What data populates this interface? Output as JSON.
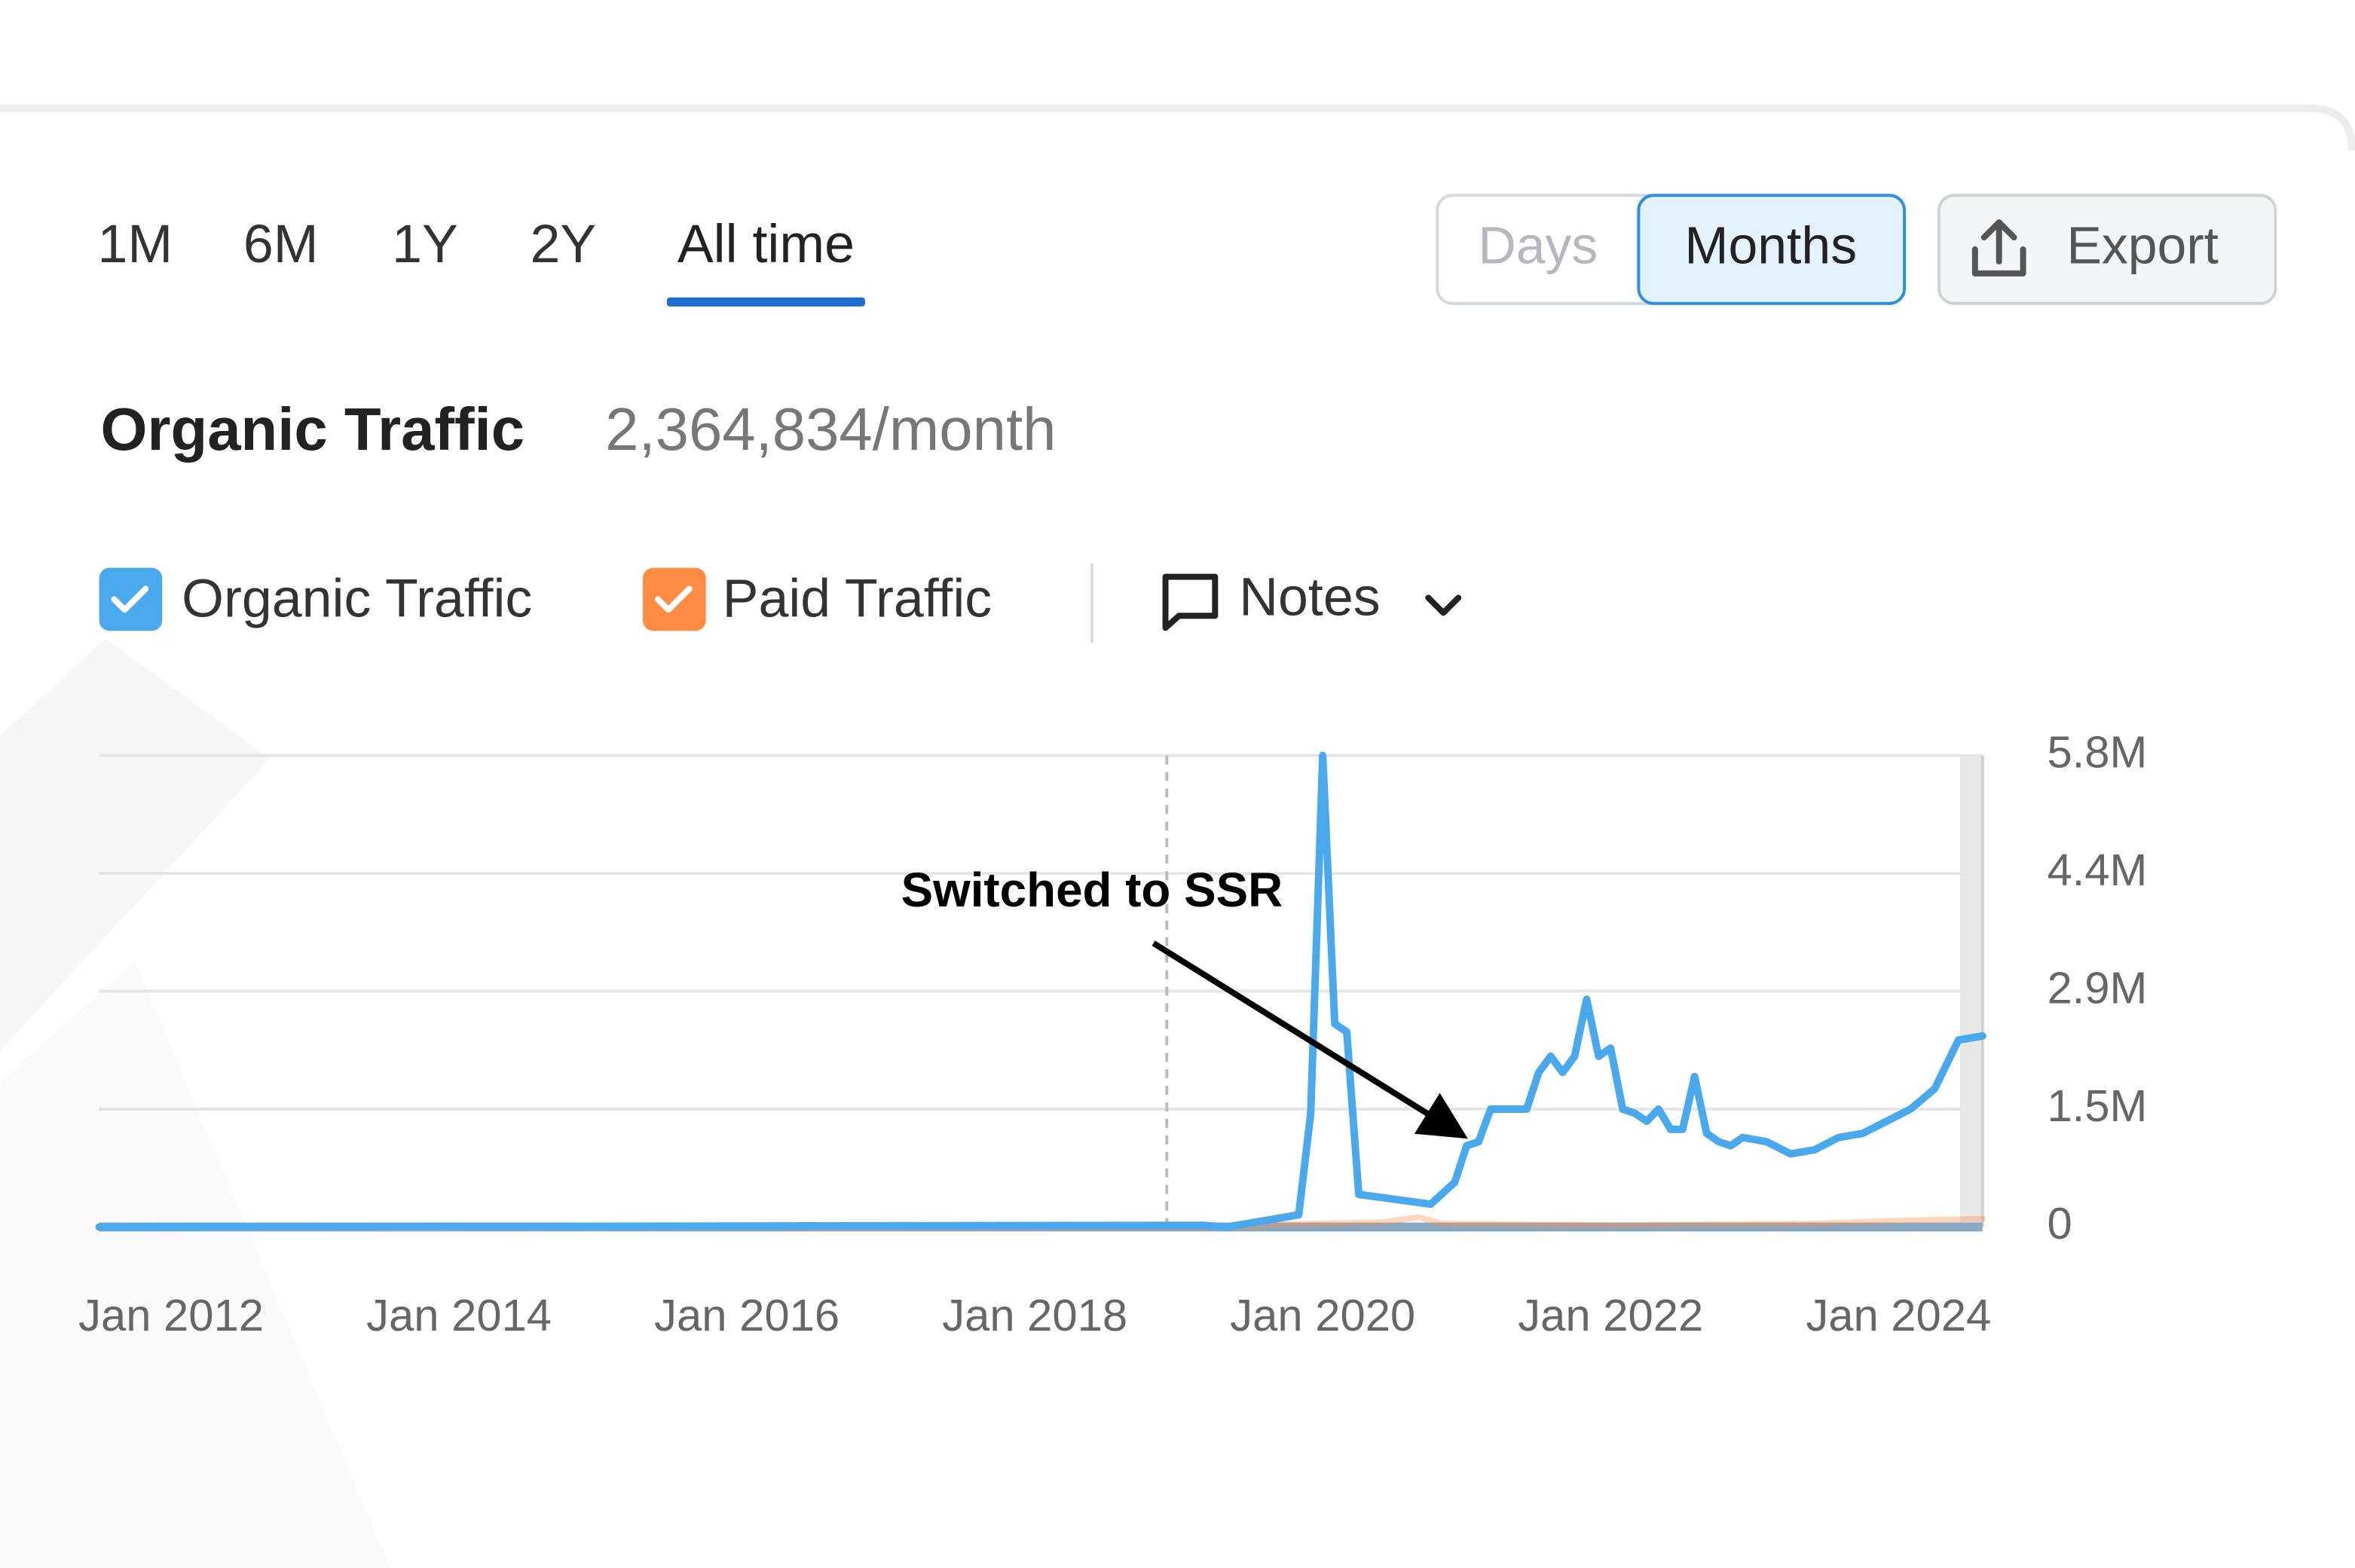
{
  "period_tabs": [
    "1M",
    "6M",
    "1Y",
    "2Y",
    "All time"
  ],
  "selected_period": 4,
  "granularity": [
    "Days",
    "Months"
  ],
  "selected_granularity": 1,
  "export_label": "Export",
  "metric": {
    "title": "Organic Traffic",
    "value": "2,364,834/month"
  },
  "notes_label": "Notes",
  "chart_data": {
    "type": "line",
    "annotation": "Switched to SSR",
    "annotation_x": "2021-01",
    "note_x": "2018-12",
    "xlim": [
      "2011-07",
      "2024-08"
    ],
    "xticks": [
      {
        "value": "2012-01",
        "label": "Jan 2012"
      },
      {
        "value": "2014-01",
        "label": "Jan 2014"
      },
      {
        "value": "2016-01",
        "label": "Jan 2016"
      },
      {
        "value": "2018-01",
        "label": "Jan 2018"
      },
      {
        "value": "2020-01",
        "label": "Jan 2020"
      },
      {
        "value": "2022-01",
        "label": "Jan 2022"
      },
      {
        "value": "2024-01",
        "label": "Jan 2024"
      }
    ],
    "ylim": [
      0,
      5800000
    ],
    "yticks": [
      0,
      {
        "value": 1450000,
        "label": "1.5M"
      },
      {
        "value": 2900000,
        "label": "2.9M"
      },
      {
        "value": 4350000,
        "label": "4.4M"
      },
      {
        "value": 5800000,
        "label": "5.8M"
      }
    ],
    "grid": true,
    "series": [
      {
        "name": "Organic Traffic",
        "color": "#4aa8ec",
        "x": [
          "2011-07",
          "2019-03",
          "2019-05",
          "2019-09",
          "2019-11",
          "2019-12",
          "2020-01",
          "2020-02",
          "2020-03",
          "2020-04",
          "2020-10",
          "2020-12",
          "2021-01",
          "2021-02",
          "2021-03",
          "2021-06",
          "2021-07",
          "2021-08",
          "2021-09",
          "2021-10",
          "2021-11",
          "2021-12",
          "2022-01",
          "2022-02",
          "2022-03",
          "2022-04",
          "2022-05",
          "2022-06",
          "2022-07",
          "2022-08",
          "2022-09",
          "2022-10",
          "2022-11",
          "2022-12",
          "2023-02",
          "2023-04",
          "2023-06",
          "2023-08",
          "2023-10",
          "2023-12",
          "2024-02",
          "2024-04",
          "2024-06",
          "2024-08"
        ],
        "values": [
          0,
          20000,
          0,
          100000,
          150000,
          1400000,
          5800000,
          2500000,
          2400000,
          400000,
          280000,
          550000,
          1000000,
          1050000,
          1450000,
          1450000,
          1900000,
          2100000,
          1900000,
          2100000,
          2800000,
          2100000,
          2200000,
          1450000,
          1400000,
          1300000,
          1450000,
          1200000,
          1200000,
          1850000,
          1150000,
          1050000,
          1000000,
          1100000,
          1050000,
          900000,
          950000,
          1100000,
          1150000,
          1300000,
          1450000,
          1700000,
          2300000,
          2350000
        ]
      },
      {
        "name": "Paid Traffic",
        "color": "#ff8c42",
        "x": [
          "2011-07",
          "2019-06",
          "2019-09",
          "2020-06",
          "2020-09",
          "2020-11",
          "2022-01",
          "2023-06",
          "2024-01",
          "2024-08"
        ],
        "values": [
          0,
          0,
          30000,
          60000,
          120000,
          40000,
          20000,
          40000,
          80000,
          100000
        ]
      }
    ]
  }
}
